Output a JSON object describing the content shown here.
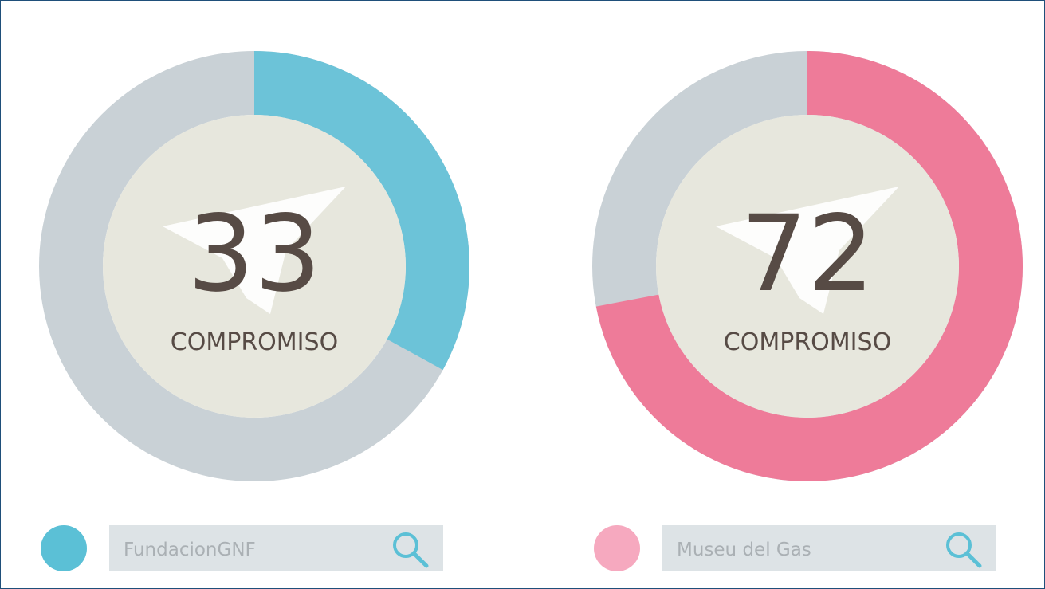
{
  "chart_data": [
    {
      "type": "donut",
      "value": 33,
      "label": "COMPROMISO",
      "ylim": [
        0,
        100
      ],
      "color": "#6cc3d8",
      "track_color": "#c9d1d6",
      "dot_color": "#5bc0d6",
      "search_text": "FundacionGNF",
      "icon_color": "#5bc0d6"
    },
    {
      "type": "donut",
      "value": 72,
      "label": "COMPROMISO",
      "ylim": [
        0,
        100
      ],
      "color": "#ee7b99",
      "track_color": "#c9d1d6",
      "dot_color": "#f6a9bf",
      "search_text": "Museu del Gas",
      "icon_color": "#5bc0d6"
    }
  ]
}
